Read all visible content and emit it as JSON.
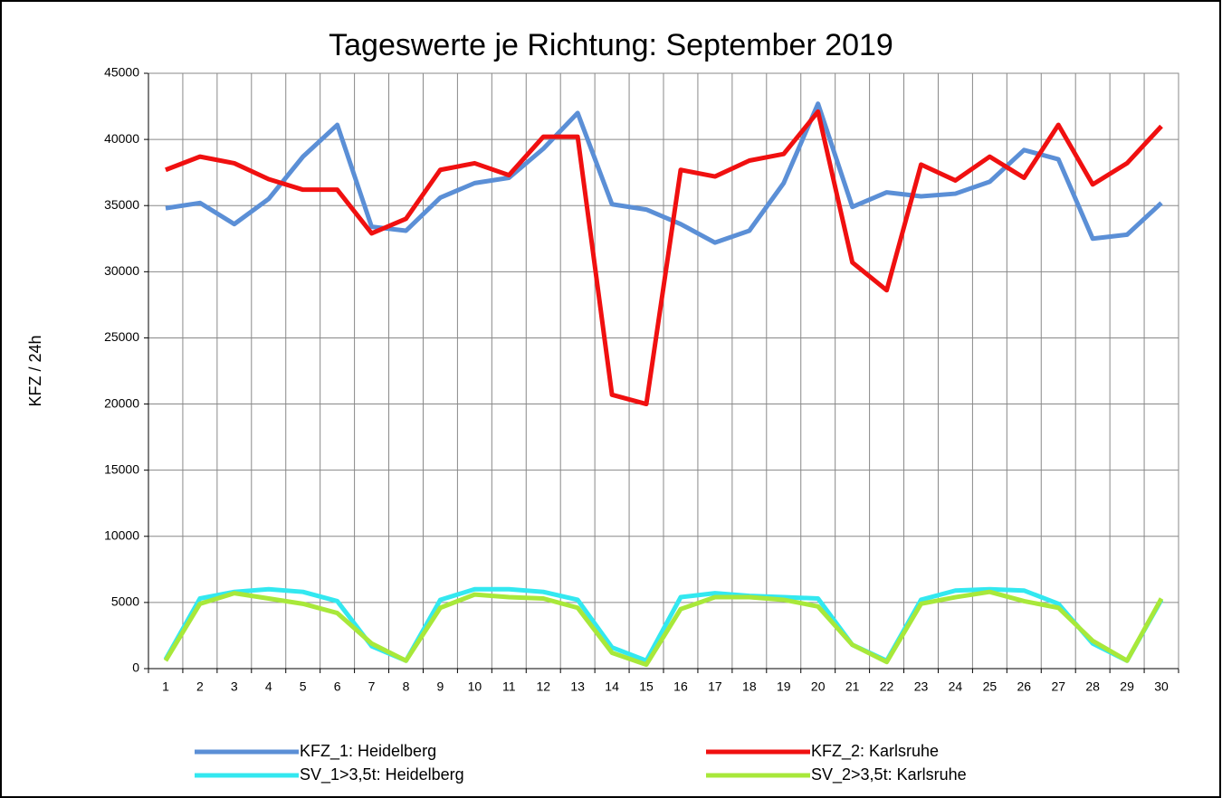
{
  "chart_data": {
    "type": "line",
    "title": "Tageswerte je Richtung: September 2019",
    "y_label": "KFZ / 24h",
    "categories": [
      "1",
      "2",
      "3",
      "4",
      "5",
      "6",
      "7",
      "8",
      "9",
      "10",
      "11",
      "12",
      "13",
      "14",
      "15",
      "16",
      "17",
      "18",
      "19",
      "20",
      "21",
      "22",
      "23",
      "24",
      "25",
      "26",
      "27",
      "28",
      "29",
      "30"
    ],
    "series": [
      {
        "name": "KFZ_1: Heidelberg",
        "color": "#5b8fd6",
        "values": [
          34800,
          35200,
          33600,
          35500,
          38700,
          41100,
          33400,
          33100,
          35600,
          36700,
          37100,
          39300,
          42000,
          35100,
          34700,
          33600,
          32200,
          33100,
          36700,
          42700,
          34900,
          36000,
          35700,
          35900,
          36800,
          39200,
          38500,
          32500,
          32800,
          35200
        ]
      },
      {
        "name": "KFZ_2: Karlsruhe",
        "color": "#f01010",
        "values": [
          37700,
          38700,
          38200,
          37000,
          36200,
          36200,
          32900,
          34000,
          37700,
          38200,
          37300,
          40200,
          40200,
          20700,
          20000,
          37700,
          37200,
          38400,
          38900,
          42100,
          30700,
          28600,
          38100,
          36900,
          38700,
          37100,
          41100,
          36600,
          38200,
          41000
        ]
      },
      {
        "name": "SV_1>3,5t: Heidelberg",
        "color": "#33e8f0",
        "values": [
          700,
          5300,
          5800,
          6000,
          5800,
          5100,
          1700,
          600,
          5200,
          6000,
          6000,
          5800,
          5200,
          1600,
          600,
          5400,
          5700,
          5500,
          5400,
          5300,
          1800,
          600,
          5200,
          5900,
          6000,
          5900,
          4900,
          1900,
          600,
          5200
        ]
      },
      {
        "name": "SV_2>3,5t: Karlsruhe",
        "color": "#a8e83a",
        "values": [
          600,
          4900,
          5700,
          5300,
          4900,
          4200,
          1900,
          600,
          4600,
          5600,
          5400,
          5300,
          4600,
          1200,
          300,
          4500,
          5400,
          5400,
          5200,
          4700,
          1800,
          500,
          4900,
          5400,
          5800,
          5100,
          4600,
          2100,
          600,
          5300
        ]
      }
    ],
    "ylim": [
      0,
      45000
    ],
    "yticks": [
      0,
      5000,
      10000,
      15000,
      20000,
      25000,
      30000,
      35000,
      40000,
      45000
    ],
    "grid": true,
    "legend": "bottom"
  }
}
